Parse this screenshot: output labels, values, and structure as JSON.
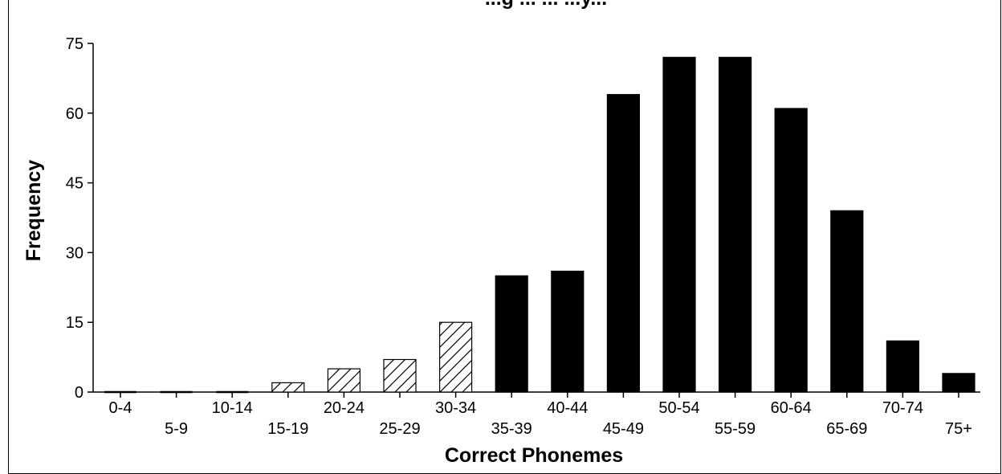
{
  "chart_data": {
    "type": "bar",
    "title": "...g ... ... ...y...",
    "xlabel": "Correct Phonemes",
    "ylabel": "Frequency",
    "ylim": [
      0,
      75
    ],
    "yticks": [
      "0",
      "15",
      "30",
      "45",
      "60",
      "75"
    ],
    "categories": [
      "0-4",
      "5-9",
      "10-14",
      "15-19",
      "20-24",
      "25-29",
      "30-34",
      "35-39",
      "40-44",
      "45-49",
      "50-54",
      "55-59",
      "60-64",
      "65-69",
      "70-74",
      "75+"
    ],
    "values": [
      0,
      0,
      0,
      2,
      5,
      7,
      15,
      25,
      26,
      64,
      72,
      72,
      61,
      39,
      11,
      4
    ],
    "fills": [
      "hatched",
      "hatched",
      "hatched",
      "hatched",
      "hatched",
      "hatched",
      "hatched",
      "solid",
      "solid",
      "solid",
      "solid",
      "solid",
      "solid",
      "solid",
      "solid",
      "solid"
    ],
    "colors": {
      "solid": "#000000",
      "hatch": "#000000",
      "background": "#ffffff"
    },
    "grid": false,
    "legend": "none"
  }
}
